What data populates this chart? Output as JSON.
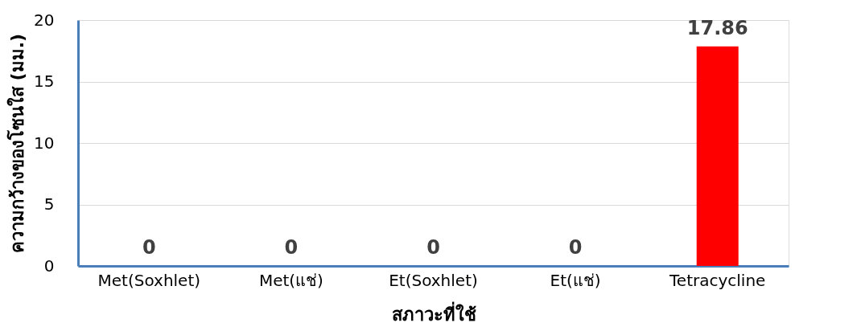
{
  "chart_data": {
    "type": "bar",
    "xlabel": "สภาวะที่ใช้",
    "ylabel": "ความกว้างของโซนใส (มม.)",
    "categories": [
      "Met(Soxhlet)",
      "Met(แช่)",
      "Et(Soxhlet)",
      "Et(แช่)",
      "Tetracycline"
    ],
    "values": [
      0,
      0,
      0,
      0,
      17.86
    ],
    "colors": [
      "#1f3864",
      "#c00000",
      "#ffff99",
      "#70ad47",
      "#ff0000"
    ],
    "ylim": [
      0,
      20
    ],
    "yticks": [
      0,
      5,
      10,
      15,
      20
    ],
    "grid": "y",
    "data_labels": true
  }
}
